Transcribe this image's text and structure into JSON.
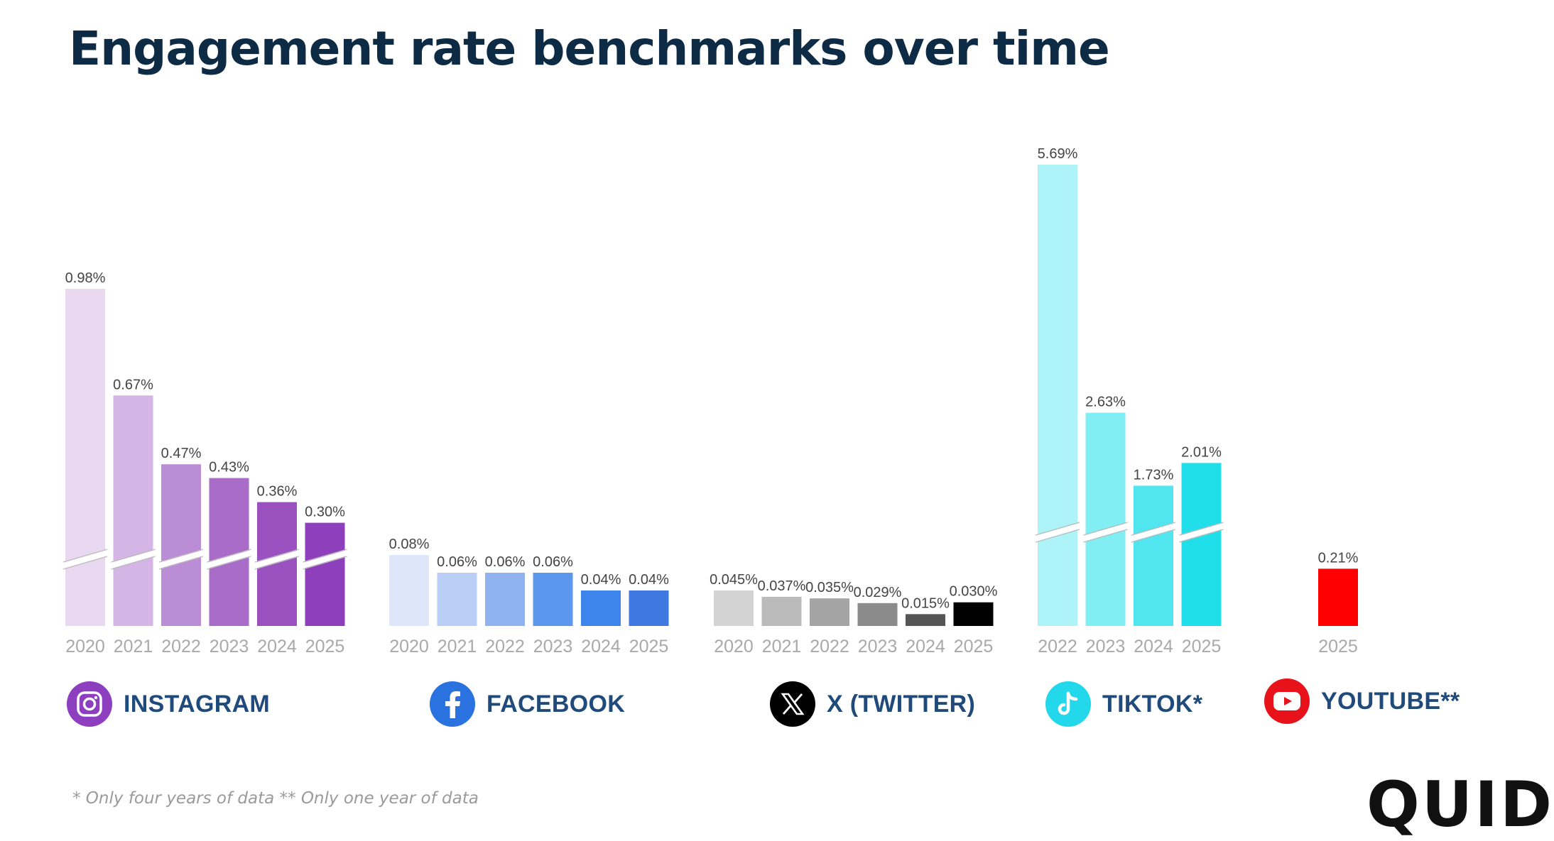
{
  "title": "Engagement rate benchmarks over time",
  "footnote": "* Only four years of data ** Only one year of data",
  "logo": "QUID",
  "legend": [
    {
      "label": "INSTAGRAM",
      "icon": "instagram-icon",
      "color": "#8e3fc0"
    },
    {
      "label": "FACEBOOK",
      "icon": "facebook-icon",
      "color": "#2a72e0"
    },
    {
      "label": "X (TWITTER)",
      "icon": "x-twitter-icon",
      "color": "#000000"
    },
    {
      "label": "TIKTOK*",
      "icon": "tiktok-icon",
      "color": "#22d8ea"
    },
    {
      "label": "YOUTUBE**",
      "icon": "youtube-icon",
      "color": "#e8121a"
    }
  ],
  "chart_data": {
    "type": "bar",
    "title": "Engagement rate benchmarks over time",
    "value_format": "percent",
    "axis_break": "Instagram and TikTok bars are drawn with a broken (truncated) y-axis",
    "groups": [
      {
        "name": "INSTAGRAM",
        "categories": [
          "2020",
          "2021",
          "2022",
          "2023",
          "2024",
          "2025"
        ],
        "values": [
          0.98,
          0.67,
          0.47,
          0.43,
          0.36,
          0.3
        ],
        "labels": [
          "0.98%",
          "0.67%",
          "0.47%",
          "0.43%",
          "0.36%",
          "0.30%"
        ],
        "colors": [
          "#e8d9f1",
          "#d4b5e5",
          "#bc8dd7",
          "#a96cc9",
          "#9a52c1",
          "#8e3fbc"
        ],
        "broken_axis": true
      },
      {
        "name": "FACEBOOK",
        "categories": [
          "2020",
          "2021",
          "2022",
          "2023",
          "2024",
          "2025"
        ],
        "values": [
          0.08,
          0.06,
          0.06,
          0.06,
          0.04,
          0.04
        ],
        "labels": [
          "0.08%",
          "0.06%",
          "0.06%",
          "0.06%",
          "0.04%",
          "0.04%"
        ],
        "colors": [
          "#dde6fb",
          "#b9cdf5",
          "#90b2f0",
          "#5c97ee",
          "#3d84eb",
          "#3f78e0"
        ],
        "broken_axis": false
      },
      {
        "name": "X (TWITTER)",
        "categories": [
          "2020",
          "2021",
          "2022",
          "2023",
          "2024",
          "2025"
        ],
        "values": [
          0.045,
          0.037,
          0.035,
          0.029,
          0.015,
          0.03
        ],
        "labels": [
          "0.045%",
          "0.037%",
          "0.035%",
          "0.029%",
          "0.015%",
          "0.030%"
        ],
        "colors": [
          "#d3d3d3",
          "#bbbbbb",
          "#a4a4a4",
          "#8b8b8b",
          "#555555",
          "#000000"
        ],
        "broken_axis": false
      },
      {
        "name": "TIKTOK*",
        "categories": [
          "2022",
          "2023",
          "2024",
          "2025"
        ],
        "values": [
          5.69,
          2.63,
          1.73,
          2.01
        ],
        "labels": [
          "5.69%",
          "2.63%",
          "1.73%",
          "2.01%"
        ],
        "colors": [
          "#adf3f7",
          "#80eef3",
          "#50e5ef",
          "#21dfea"
        ],
        "broken_axis": true
      },
      {
        "name": "YOUTUBE**",
        "categories": [
          "2025"
        ],
        "values": [
          0.21
        ],
        "labels": [
          "0.21%"
        ],
        "colors": [
          "#ff0000"
        ],
        "broken_axis": false
      }
    ]
  }
}
